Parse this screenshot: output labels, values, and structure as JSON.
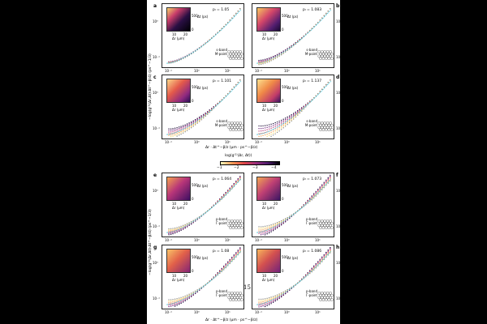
{
  "colors": {
    "dark": "#1d0b36",
    "purple": "#6a1f7a",
    "magenta": "#b83677",
    "red": "#e25c4b",
    "orange": "#f29b4a",
    "yellow": "#f7d86a",
    "cyan": "#39c0d8",
    "grey": "#888888"
  },
  "figure": {
    "y_axis_label": "−log(g⁽¹⁾(Δr,Δt)·Δt^−β/4) (ps^−1/3)",
    "x_axis_label": "Δr · Δt^−β/z (μm · ps^−β/z)",
    "x_ticks": [
      "10⁻¹",
      "10⁰",
      "10¹"
    ],
    "y_ticks": [
      "10⁻¹",
      "10⁰"
    ],
    "inset_y_label": "Δt (ps)",
    "inset_x_label": "Δr (μm)",
    "inset_y_ticks": [
      "500",
      "0"
    ],
    "inset_x_ticks": [
      "10",
      "20"
    ],
    "page_number": "15"
  },
  "colorbar": {
    "label": "log(g⁽¹⁾(Δr, Δt))",
    "ticks": [
      "−1",
      "−2",
      "−3",
      "−4"
    ]
  },
  "panels": [
    {
      "letter": "a",
      "p_value": "pₗ = 1.05",
      "band": "s-band",
      "point": "M-point"
    },
    {
      "letter": "b",
      "p_value": "pₗ = 1.083",
      "band": "s-band",
      "point": "M-point"
    },
    {
      "letter": "c",
      "p_value": "pₗ = 1.101",
      "band": "s-band",
      "point": "M-point"
    },
    {
      "letter": "d",
      "p_value": "pₗ = 1.137",
      "band": "s-band",
      "point": "M-point"
    },
    {
      "letter": "e",
      "p_value": "pₗ = 1.064",
      "band": "p-band",
      "point": "Γ-point"
    },
    {
      "letter": "f",
      "p_value": "pₗ = 1.073",
      "band": "p-band",
      "point": "Γ-point"
    },
    {
      "letter": "g",
      "p_value": "pₗ = 1.08",
      "band": "p-band",
      "point": "Γ-point"
    },
    {
      "letter": "h",
      "p_value": "pₗ = 1.086",
      "band": "p-band",
      "point": "Γ-point"
    }
  ]
}
